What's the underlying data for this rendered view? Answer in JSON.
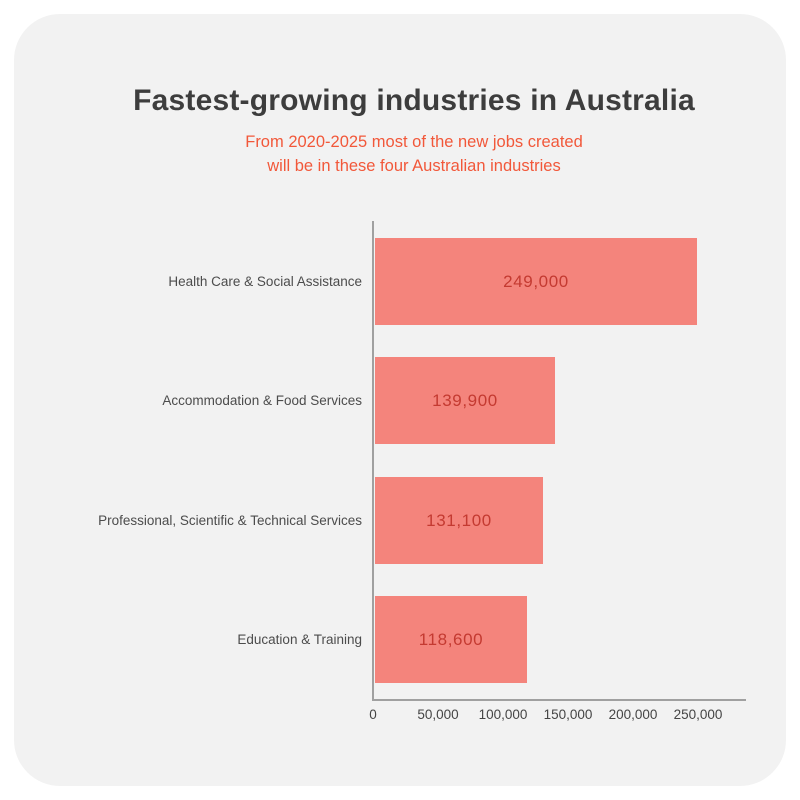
{
  "header": {
    "title": "Fastest-growing industries in Australia",
    "subtitle_line1": "From 2020-2025 most of the new jobs created",
    "subtitle_line2": "will be in these four Australian industries"
  },
  "chart_data": {
    "type": "bar",
    "orientation": "horizontal",
    "title": "Fastest-growing industries in Australia",
    "subtitle": "From 2020-2025 most of the new jobs created will be in these four Australian industries",
    "categories": [
      "Health Care & Social Assistance",
      "Accommodation & Food Services",
      "Professional, Scientific & Technical Services",
      "Education & Training"
    ],
    "values": [
      249000,
      139900,
      131100,
      118600
    ],
    "value_labels": [
      "249,000",
      "139,900",
      "131,100",
      "118,600"
    ],
    "x_ticks": [
      {
        "value": 0,
        "label": "0"
      },
      {
        "value": 50000,
        "label": "50,000"
      },
      {
        "value": 100000,
        "label": "100,000"
      },
      {
        "value": 150000,
        "label": "150,000"
      },
      {
        "value": 200000,
        "label": "200,000"
      },
      {
        "value": 250000,
        "label": "250,000"
      }
    ],
    "xlim": [
      0,
      250000
    ],
    "xlabel": "",
    "ylabel": "",
    "grid": false,
    "legend": false
  },
  "colors": {
    "page-bg": "#ffffff",
    "card-bg": "#f2f2f2",
    "title": "#3d3d3d",
    "subtitle": "#f2583a",
    "bar": "#f4847c",
    "bar-value": "#c43a31",
    "category-label": "#4c4c4c",
    "tick-label": "#454545",
    "axis": "#a0a0a0"
  }
}
